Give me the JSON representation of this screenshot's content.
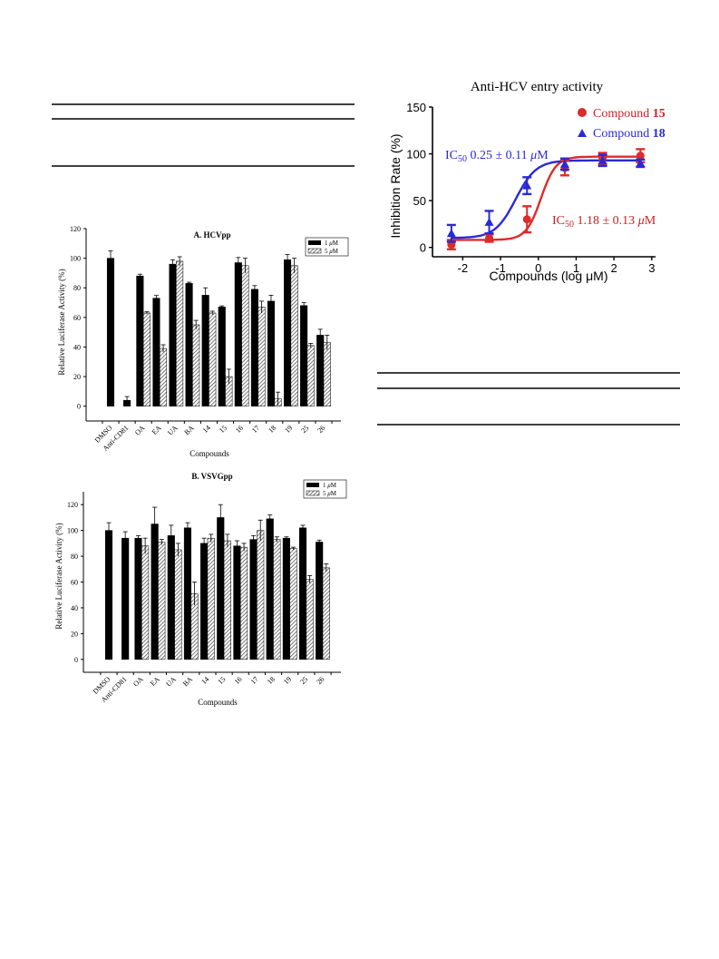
{
  "colors": {
    "compound15": "#dd2b2b",
    "compound18": "#2a2ad4",
    "bar_1uM": "#000000",
    "bar_5uM_hatch": "#555555"
  },
  "chart_data": [
    {
      "id": "hcvpp",
      "type": "bar",
      "title": "A. HCVpp",
      "xlabel": "Compounds",
      "ylabel": "Relative Luciferase Activity (%)",
      "ylim": [
        -10,
        120
      ],
      "yticks": [
        0,
        20,
        40,
        60,
        80,
        100,
        120
      ],
      "legend": "top-right",
      "legend_entries": [
        {
          "pre": "1 ",
          "italic": "μ",
          "post": "M"
        },
        {
          "pre": "5 ",
          "italic": "μ",
          "post": "M"
        }
      ],
      "categories": [
        "DMSO",
        "Anti-CD81",
        "OA",
        "EA",
        "UA",
        "BA",
        "14",
        "15",
        "16",
        "17",
        "18",
        "19",
        "25",
        "26"
      ],
      "series": [
        {
          "name": "1 μM",
          "style": "solid",
          "values": [
            100,
            4,
            88,
            73,
            96,
            83,
            75,
            67,
            97,
            79,
            71,
            99,
            68,
            48
          ],
          "errors": [
            5,
            2.5,
            1.2,
            1.8,
            3,
            0.8,
            5,
            0.8,
            3.5,
            2.5,
            4,
            3.5,
            2,
            4
          ]
        },
        {
          "name": "5 μM",
          "style": "hatch",
          "values": [
            null,
            null,
            63,
            39,
            98,
            55,
            63,
            20,
            95,
            67,
            5,
            95,
            41,
            43
          ],
          "errors": [
            null,
            null,
            0.8,
            2.5,
            3,
            3,
            1.2,
            5,
            5,
            4,
            4.5,
            5,
            1.5,
            5
          ]
        }
      ]
    },
    {
      "id": "vsvgpp",
      "type": "bar",
      "title": "B. VSVGpp",
      "xlabel": "Compounds",
      "ylabel": "Relative Luciferase Activity (%)",
      "ylim": [
        -10,
        130
      ],
      "yticks": [
        0,
        20,
        40,
        60,
        80,
        100,
        120
      ],
      "legend": "top-right",
      "legend_entries": [
        {
          "pre": "1 ",
          "italic": "μ",
          "post": "M"
        },
        {
          "pre": "5 ",
          "italic": "μ",
          "post": "M"
        }
      ],
      "categories": [
        "DMSO",
        "Anti-CD81",
        "OA",
        "EA",
        "UA",
        "BA",
        "14",
        "15",
        "16",
        "17",
        "18",
        "19",
        "25",
        "26"
      ],
      "series": [
        {
          "name": "1 μM",
          "style": "solid",
          "values": [
            100,
            94,
            94,
            105,
            96,
            102,
            90,
            110,
            88,
            93,
            109,
            94,
            102,
            91
          ],
          "errors": [
            6,
            5,
            2,
            13,
            8,
            4,
            4,
            10,
            4,
            3,
            3,
            1,
            2,
            1.5
          ]
        },
        {
          "name": "5 μM",
          "style": "hatch",
          "values": [
            null,
            null,
            88,
            91,
            85,
            51,
            94,
            92,
            87,
            100,
            93,
            86,
            62,
            71
          ],
          "errors": [
            null,
            null,
            6,
            2,
            5,
            9,
            3,
            5,
            3,
            8,
            2,
            1,
            3,
            3
          ]
        }
      ]
    },
    {
      "id": "dose-response",
      "type": "scatter",
      "title": "Anti-HCV entry activity",
      "xlabel": "Compounds  (log μM)",
      "ylabel": "Inhibition Rate (%)",
      "xlim": [
        -2.8,
        3.1
      ],
      "ylim": [
        -10,
        150
      ],
      "xticks": [
        -2,
        -1,
        0,
        1,
        2,
        3
      ],
      "yticks": [
        0,
        50,
        100,
        150
      ],
      "legend": "top-right",
      "series": [
        {
          "name": "Compound 15",
          "label_pre": "Compound ",
          "label_bold": "15",
          "marker": "circle",
          "x": [
            -2.3,
            -1.3,
            -0.3,
            0.7,
            1.7,
            2.7
          ],
          "y": [
            3,
            10,
            30,
            85,
            95,
            98
          ],
          "errors": [
            5,
            4,
            14,
            8,
            6,
            7
          ],
          "fit": {
            "bottom": 8,
            "top": 97,
            "log_ic50": 0.07,
            "hill": 2.2
          }
        },
        {
          "name": "Compound 18",
          "label_pre": "Compound ",
          "label_bold": "18",
          "marker": "triangle",
          "x": [
            -2.3,
            -1.3,
            -0.3,
            0.7,
            1.7,
            2.7
          ],
          "y": [
            15,
            27,
            66,
            89,
            93,
            90
          ],
          "errors": [
            9,
            12,
            9,
            6,
            6,
            4
          ],
          "fit": {
            "bottom": 10,
            "top": 93,
            "log_ic50": -0.6,
            "hill": 1.6
          }
        }
      ],
      "annotations": [
        {
          "id": "ic50-18",
          "prefix": "IC",
          "sub": "50",
          "value": " 0.25 ± 0.11 ",
          "unit_italic": "μ",
          "unit": "M"
        },
        {
          "id": "ic50-15",
          "prefix": "IC",
          "sub": "50",
          "value": " 1.18 ± 0.13 ",
          "unit_italic": "μ",
          "unit": "M"
        }
      ]
    }
  ]
}
